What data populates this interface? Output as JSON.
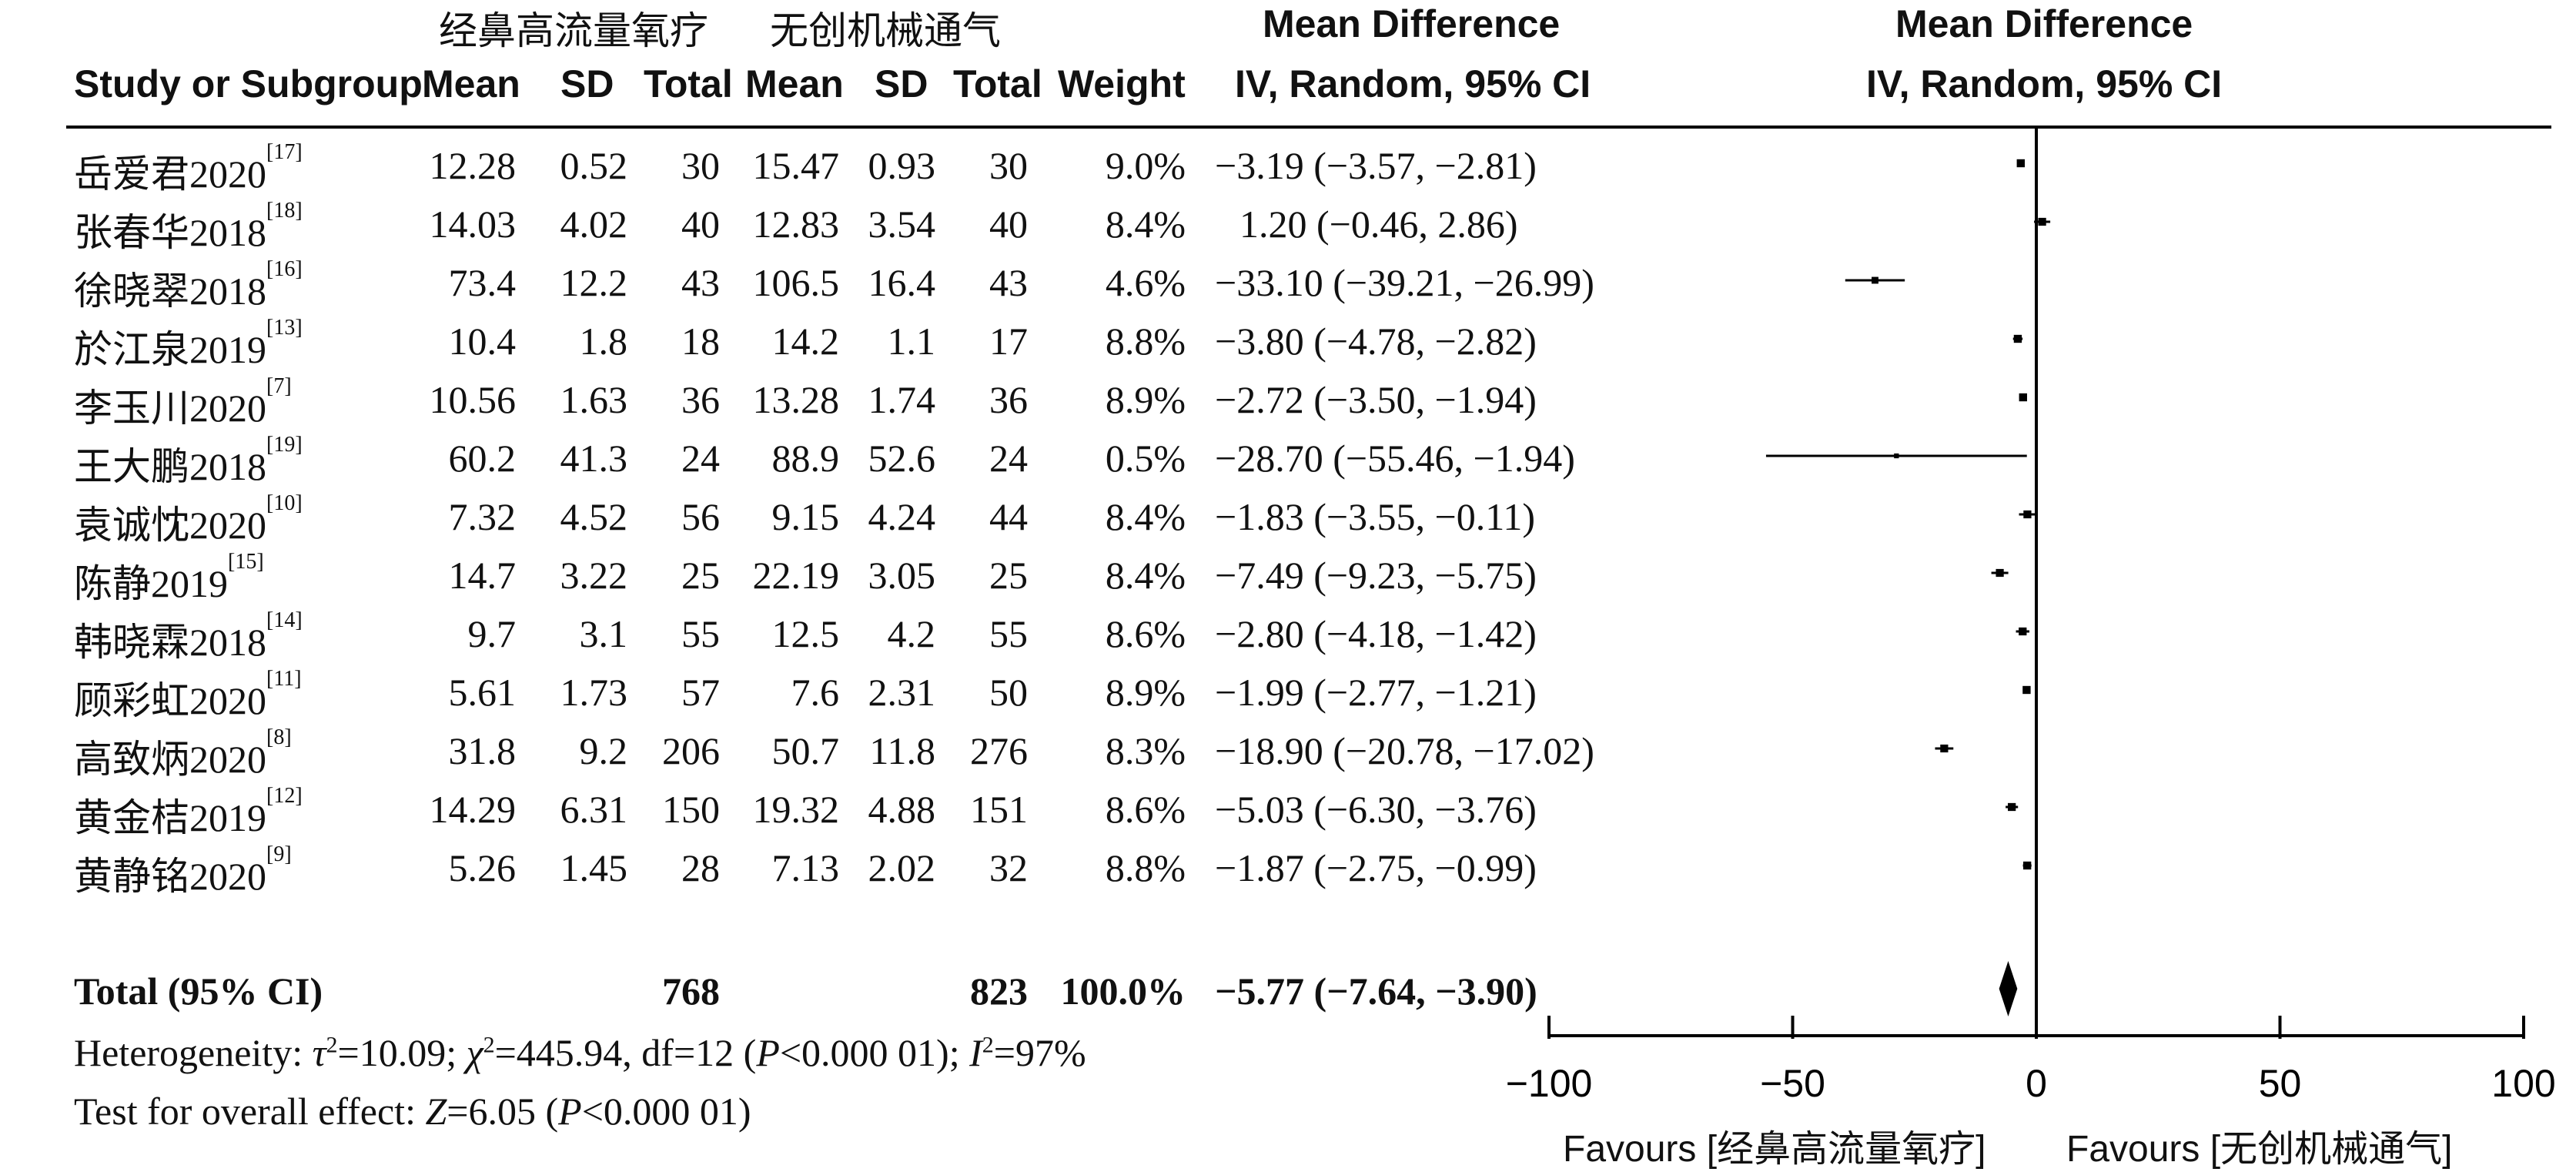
{
  "header": {
    "group1_name": "经鼻高流量氧疗",
    "group2_name": "无创机械通气",
    "md_title": "Mean Difference",
    "md_method": "IV, Random, 95% CI",
    "plot_title": "Mean Difference",
    "plot_method": "IV, Random, 95% CI",
    "col_study": "Study or Subgroup",
    "col_mean1": "Mean",
    "col_sd1": "SD",
    "col_total1": "Total",
    "col_mean2": "Mean",
    "col_sd2": "SD",
    "col_total2": "Total",
    "col_weight": "Weight"
  },
  "studies": [
    {
      "name": "岳爱君2020",
      "ref": "[17]",
      "mean1": "12.28",
      "sd1": "0.52",
      "total1": "30",
      "mean2": "15.47",
      "sd2": "0.93",
      "total2": "30",
      "weight": "9.0%",
      "ci_text": "−3.19 (−3.57, −2.81)"
    },
    {
      "name": "张春华2018",
      "ref": "[18]",
      "mean1": "14.03",
      "sd1": "4.02",
      "total1": "40",
      "mean2": "12.83",
      "sd2": "3.54",
      "total2": "40",
      "weight": "8.4%",
      "ci_text": "1.20 (−0.46, 2.86)"
    },
    {
      "name": "徐晓翠2018",
      "ref": "[16]",
      "mean1": "73.4",
      "sd1": "12.2",
      "total1": "43",
      "mean2": "106.5",
      "sd2": "16.4",
      "total2": "43",
      "weight": "4.6%",
      "ci_text": "−33.10 (−39.21, −26.99)"
    },
    {
      "name": "於江泉2019",
      "ref": "[13]",
      "mean1": "10.4",
      "sd1": "1.8",
      "total1": "18",
      "mean2": "14.2",
      "sd2": "1.1",
      "total2": "17",
      "weight": "8.8%",
      "ci_text": "−3.80 (−4.78, −2.82)"
    },
    {
      "name": "李玉川2020",
      "ref": "[7]",
      "mean1": "10.56",
      "sd1": "1.63",
      "total1": "36",
      "mean2": "13.28",
      "sd2": "1.74",
      "total2": "36",
      "weight": "8.9%",
      "ci_text": "−2.72 (−3.50, −1.94)"
    },
    {
      "name": "王大鹏2018",
      "ref": "[19]",
      "mean1": "60.2",
      "sd1": "41.3",
      "total1": "24",
      "mean2": "88.9",
      "sd2": "52.6",
      "total2": "24",
      "weight": "0.5%",
      "ci_text": "−28.70 (−55.46, −1.94)"
    },
    {
      "name": "袁诚忱2020",
      "ref": "[10]",
      "mean1": "7.32",
      "sd1": "4.52",
      "total1": "56",
      "mean2": "9.15",
      "sd2": "4.24",
      "total2": "44",
      "weight": "8.4%",
      "ci_text": "−1.83 (−3.55, −0.11)"
    },
    {
      "name": "陈静2019",
      "ref": "[15]",
      "mean1": "14.7",
      "sd1": "3.22",
      "total1": "25",
      "mean2": "22.19",
      "sd2": "3.05",
      "total2": "25",
      "weight": "8.4%",
      "ci_text": "−7.49 (−9.23, −5.75)"
    },
    {
      "name": "韩晓霖2018",
      "ref": "[14]",
      "mean1": "9.7",
      "sd1": "3.1",
      "total1": "55",
      "mean2": "12.5",
      "sd2": "4.2",
      "total2": "55",
      "weight": "8.6%",
      "ci_text": "−2.80 (−4.18, −1.42)"
    },
    {
      "name": "顾彩虹2020",
      "ref": "[11]",
      "mean1": "5.61",
      "sd1": "1.73",
      "total1": "57",
      "mean2": "7.6",
      "sd2": "2.31",
      "total2": "50",
      "weight": "8.9%",
      "ci_text": "−1.99 (−2.77, −1.21)"
    },
    {
      "name": "高致炳2020",
      "ref": "[8]",
      "mean1": "31.8",
      "sd1": "9.2",
      "total1": "206",
      "mean2": "50.7",
      "sd2": "11.8",
      "total2": "276",
      "weight": "8.3%",
      "ci_text": "−18.90 (−20.78, −17.02)"
    },
    {
      "name": "黄金桔2019",
      "ref": "[12]",
      "mean1": "14.29",
      "sd1": "6.31",
      "total1": "150",
      "mean2": "19.32",
      "sd2": "4.88",
      "total2": "151",
      "weight": "8.6%",
      "ci_text": "−5.03 (−6.30, −3.76)"
    },
    {
      "name": "黄静铭2020",
      "ref": "[9]",
      "mean1": "5.26",
      "sd1": "1.45",
      "total1": "28",
      "mean2": "7.13",
      "sd2": "2.02",
      "total2": "32",
      "weight": "8.8%",
      "ci_text": "−1.87 (−2.75, −0.99)"
    }
  ],
  "total": {
    "label": "Total (95% CI)",
    "total1": "768",
    "total2": "823",
    "weight": "100.0%",
    "ci_text": "−5.77 (−7.64, −3.90)"
  },
  "footnotes": {
    "heterogeneity_prefix": "Heterogeneity: ",
    "heterogeneity_rest": "=10.09; ",
    "chi_rest": "=445.94, df=12 (",
    "p1": "P",
    "p1_rest": "<0.000 01); ",
    "i_rest": "=97%",
    "overall_prefix": "Test for overall effect: ",
    "z_letter": "Z",
    "z_rest": "=6.05 (",
    "p2": "P",
    "p2_rest": "<0.000 01)"
  },
  "axis": {
    "favours_left": "Favours [经鼻高流量氧疗]",
    "favours_right": "Favours [无创机械通气]"
  },
  "chart_data": {
    "type": "forest",
    "xlim": [
      -100,
      100
    ],
    "xticks": [
      "−100",
      "−50",
      "0",
      "50",
      "100"
    ],
    "xtick_values": [
      -100,
      -50,
      0,
      50,
      100
    ],
    "marker_color": "#000000",
    "series": [
      {
        "study": "岳爱君2020",
        "md": -3.19,
        "lo": -3.57,
        "hi": -2.81,
        "weight": 9.0
      },
      {
        "study": "张春华2018",
        "md": 1.2,
        "lo": -0.46,
        "hi": 2.86,
        "weight": 8.4
      },
      {
        "study": "徐晓翠2018",
        "md": -33.1,
        "lo": -39.21,
        "hi": -26.99,
        "weight": 4.6
      },
      {
        "study": "於江泉2019",
        "md": -3.8,
        "lo": -4.78,
        "hi": -2.82,
        "weight": 8.8
      },
      {
        "study": "李玉川2020",
        "md": -2.72,
        "lo": -3.5,
        "hi": -1.94,
        "weight": 8.9
      },
      {
        "study": "王大鹏2018",
        "md": -28.7,
        "lo": -55.46,
        "hi": -1.94,
        "weight": 0.5
      },
      {
        "study": "袁诚忱2020",
        "md": -1.83,
        "lo": -3.55,
        "hi": -0.11,
        "weight": 8.4
      },
      {
        "study": "陈静2019",
        "md": -7.49,
        "lo": -9.23,
        "hi": -5.75,
        "weight": 8.4
      },
      {
        "study": "韩晓霖2018",
        "md": -2.8,
        "lo": -4.18,
        "hi": -1.42,
        "weight": 8.6
      },
      {
        "study": "顾彩虹2020",
        "md": -1.99,
        "lo": -2.77,
        "hi": -1.21,
        "weight": 8.9
      },
      {
        "study": "高致炳2020",
        "md": -18.9,
        "lo": -20.78,
        "hi": -17.02,
        "weight": 8.3
      },
      {
        "study": "黄金桔2019",
        "md": -5.03,
        "lo": -6.3,
        "hi": -3.76,
        "weight": 8.6
      },
      {
        "study": "黄静铭2020",
        "md": -1.87,
        "lo": -2.75,
        "hi": -0.99,
        "weight": 8.8
      }
    ],
    "pooled": {
      "md": -5.77,
      "lo": -7.64,
      "hi": -3.9
    }
  }
}
